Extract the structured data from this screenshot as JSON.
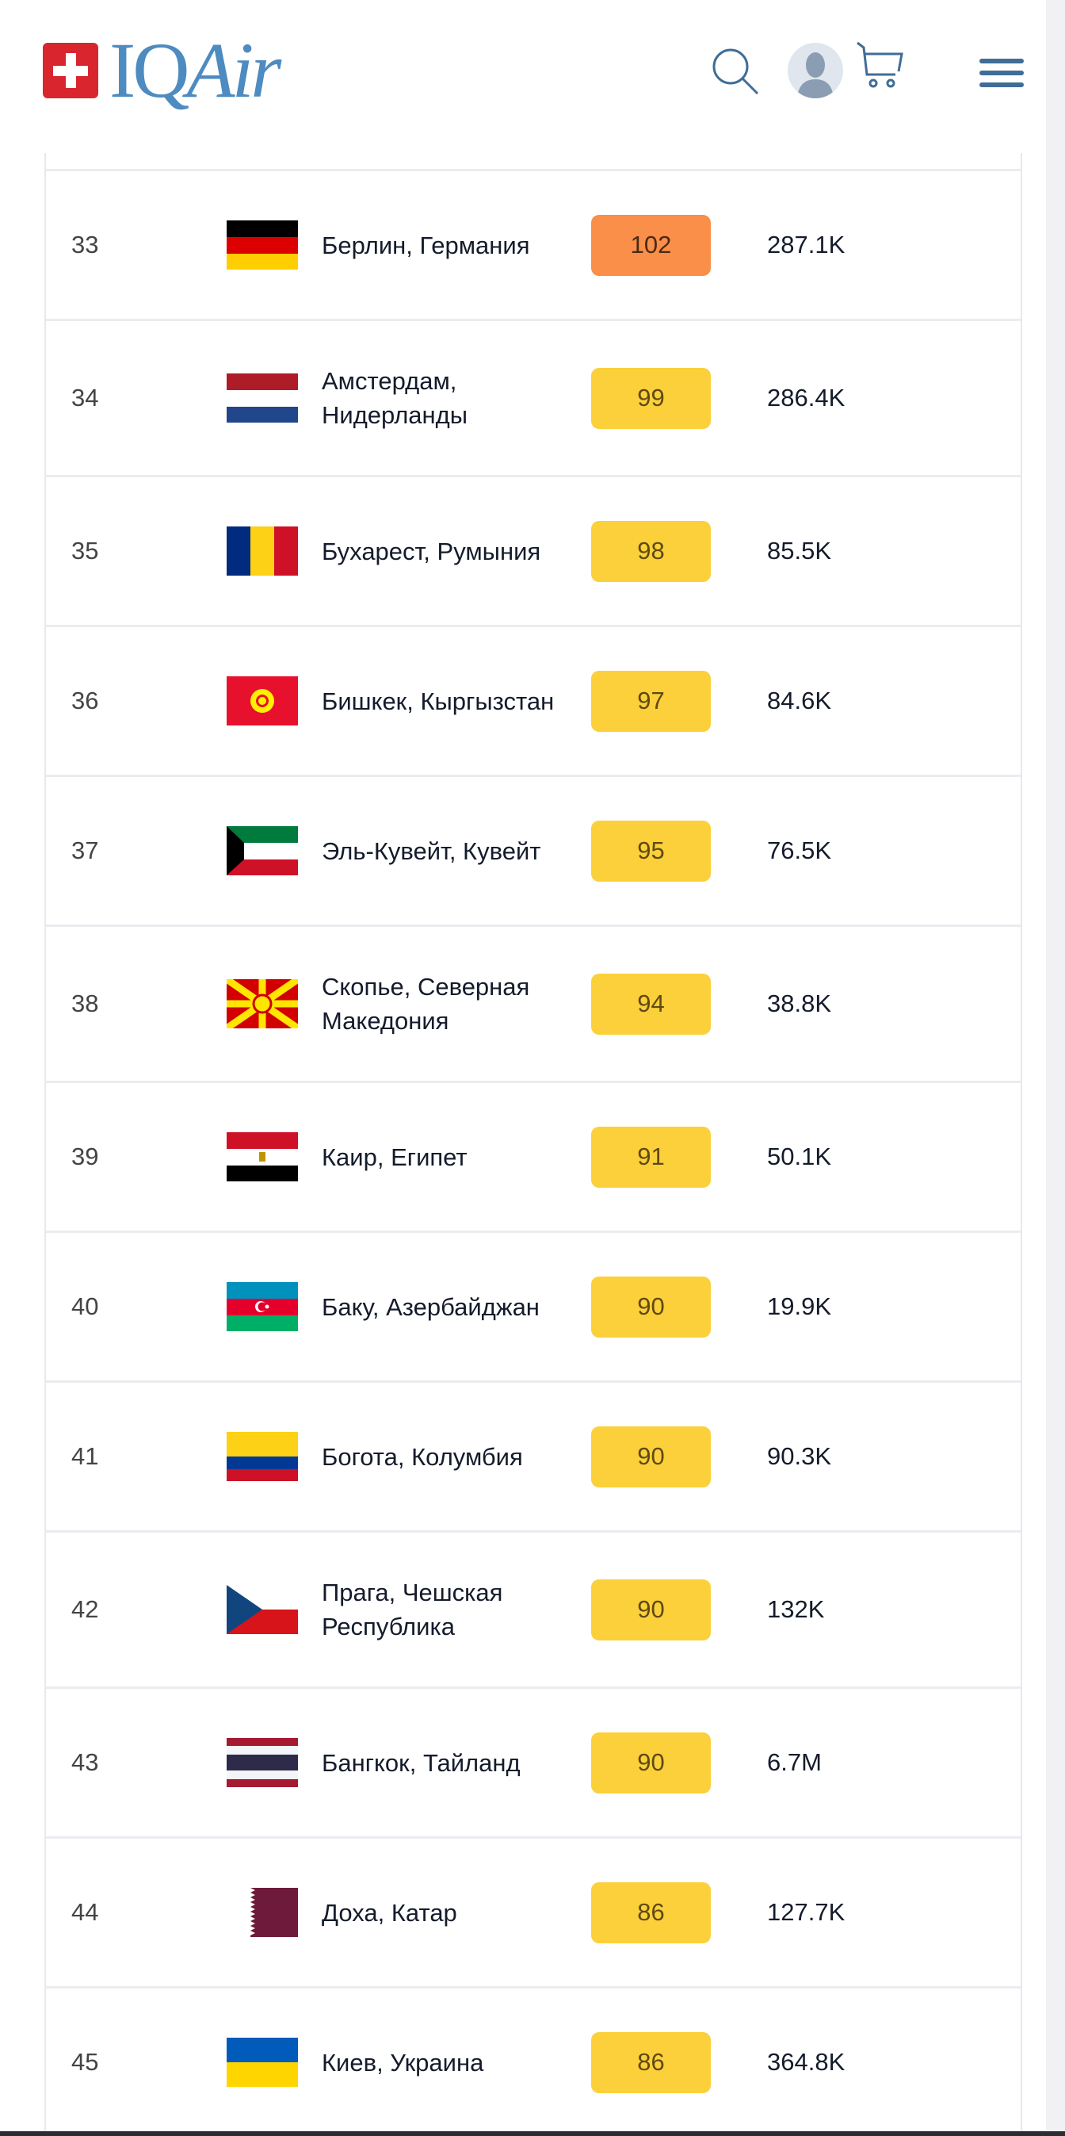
{
  "header": {
    "logo_text": "IQAir",
    "icons": [
      "swiss-cross-icon",
      "search-icon",
      "avatar-icon",
      "cart-icon",
      "hamburger-menu-icon"
    ]
  },
  "colors": {
    "brand_blue": "#4d8bc0",
    "aqi_orange": "#f98f48",
    "aqi_yellow": "#fbd03a"
  },
  "rows": [
    {
      "rank": "33",
      "flag": "germany",
      "city": "Берлин, Германия",
      "aqi": "102",
      "level": "orange",
      "population": "287.1K"
    },
    {
      "rank": "34",
      "flag": "netherlands",
      "city": "Амстердам, Нидерланды",
      "aqi": "99",
      "level": "yellow",
      "population": "286.4K"
    },
    {
      "rank": "35",
      "flag": "romania",
      "city": "Бухарест, Румыния",
      "aqi": "98",
      "level": "yellow",
      "population": "85.5K"
    },
    {
      "rank": "36",
      "flag": "kyrgyzstan",
      "city": "Бишкек, Кыргызстан",
      "aqi": "97",
      "level": "yellow",
      "population": "84.6K"
    },
    {
      "rank": "37",
      "flag": "kuwait",
      "city": "Эль-Кувейт, Кувейт",
      "aqi": "95",
      "level": "yellow",
      "population": "76.5K"
    },
    {
      "rank": "38",
      "flag": "north-macedonia",
      "city": "Скопье, Северная Македония",
      "aqi": "94",
      "level": "yellow",
      "population": "38.8K"
    },
    {
      "rank": "39",
      "flag": "egypt",
      "city": "Каир, Египет",
      "aqi": "91",
      "level": "yellow",
      "population": "50.1K"
    },
    {
      "rank": "40",
      "flag": "azerbaijan",
      "city": "Баку, Азербайджан",
      "aqi": "90",
      "level": "yellow",
      "population": "19.9K"
    },
    {
      "rank": "41",
      "flag": "colombia",
      "city": "Богота, Колумбия",
      "aqi": "90",
      "level": "yellow",
      "population": "90.3K"
    },
    {
      "rank": "42",
      "flag": "czech-republic",
      "city": "Прага, Чешская Республика",
      "aqi": "90",
      "level": "yellow",
      "population": "132K"
    },
    {
      "rank": "43",
      "flag": "thailand",
      "city": "Бангкок, Тайланд",
      "aqi": "90",
      "level": "yellow",
      "population": "6.7M"
    },
    {
      "rank": "44",
      "flag": "qatar",
      "city": "Доха, Катар",
      "aqi": "86",
      "level": "yellow",
      "population": "127.7K"
    },
    {
      "rank": "45",
      "flag": "ukraine",
      "city": "Киев, Украина",
      "aqi": "86",
      "level": "yellow",
      "population": "364.8K"
    }
  ]
}
